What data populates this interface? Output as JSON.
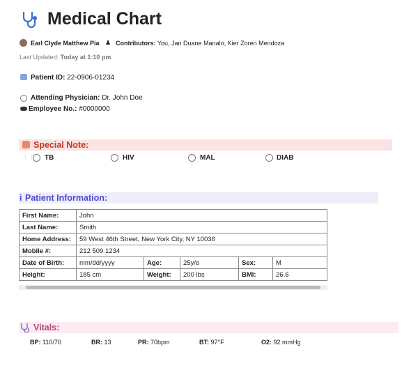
{
  "header": {
    "title": "Medical Chart",
    "author": "Earl Clyde Matthew Pia",
    "contributors_label": "Contributors:",
    "contributors": "You, Jan Duane Manalo, Kier Zoren Mendoza",
    "last_updated_label": "Last Updated:",
    "last_updated": "Today at 1:10 pm"
  },
  "patient_id": {
    "label": "Patient ID:",
    "value": "22-0906-01234"
  },
  "physician": {
    "label": "Attending Physician:",
    "value": "Dr. John Doe"
  },
  "employee": {
    "label": "Employee No.:",
    "value": "#0000000"
  },
  "special_note": {
    "title": "Special Note:",
    "options": [
      "TB",
      "HIV",
      "MAL",
      "DIAB"
    ]
  },
  "patient_info": {
    "title": "Patient Information:",
    "table": {
      "rows": [
        [
          "First Name:",
          "John"
        ],
        [
          "Last Name:",
          "Smith"
        ],
        [
          "Home Address:",
          "59 West 46th Street, New York City, NY 10036"
        ],
        [
          "Mobile #:",
          "212 509 1234"
        ],
        [
          "Date of Birth:",
          "mm/dd/yyyy",
          "Age:",
          "25y/o",
          "Sex:",
          "M"
        ],
        [
          "Height:",
          "185 cm",
          "Weight:",
          "200 lbs",
          "BMI:",
          "26.6"
        ]
      ]
    }
  },
  "vitals": {
    "title": "Vitals:",
    "items": [
      {
        "label": "BP:",
        "value": "110/70"
      },
      {
        "label": "BR:",
        "value": "13"
      },
      {
        "label": "PR:",
        "value": "70bpm"
      },
      {
        "label": "BT:",
        "value": "97°F"
      },
      {
        "label": "O2:",
        "value": "92 mmHg"
      }
    ]
  }
}
